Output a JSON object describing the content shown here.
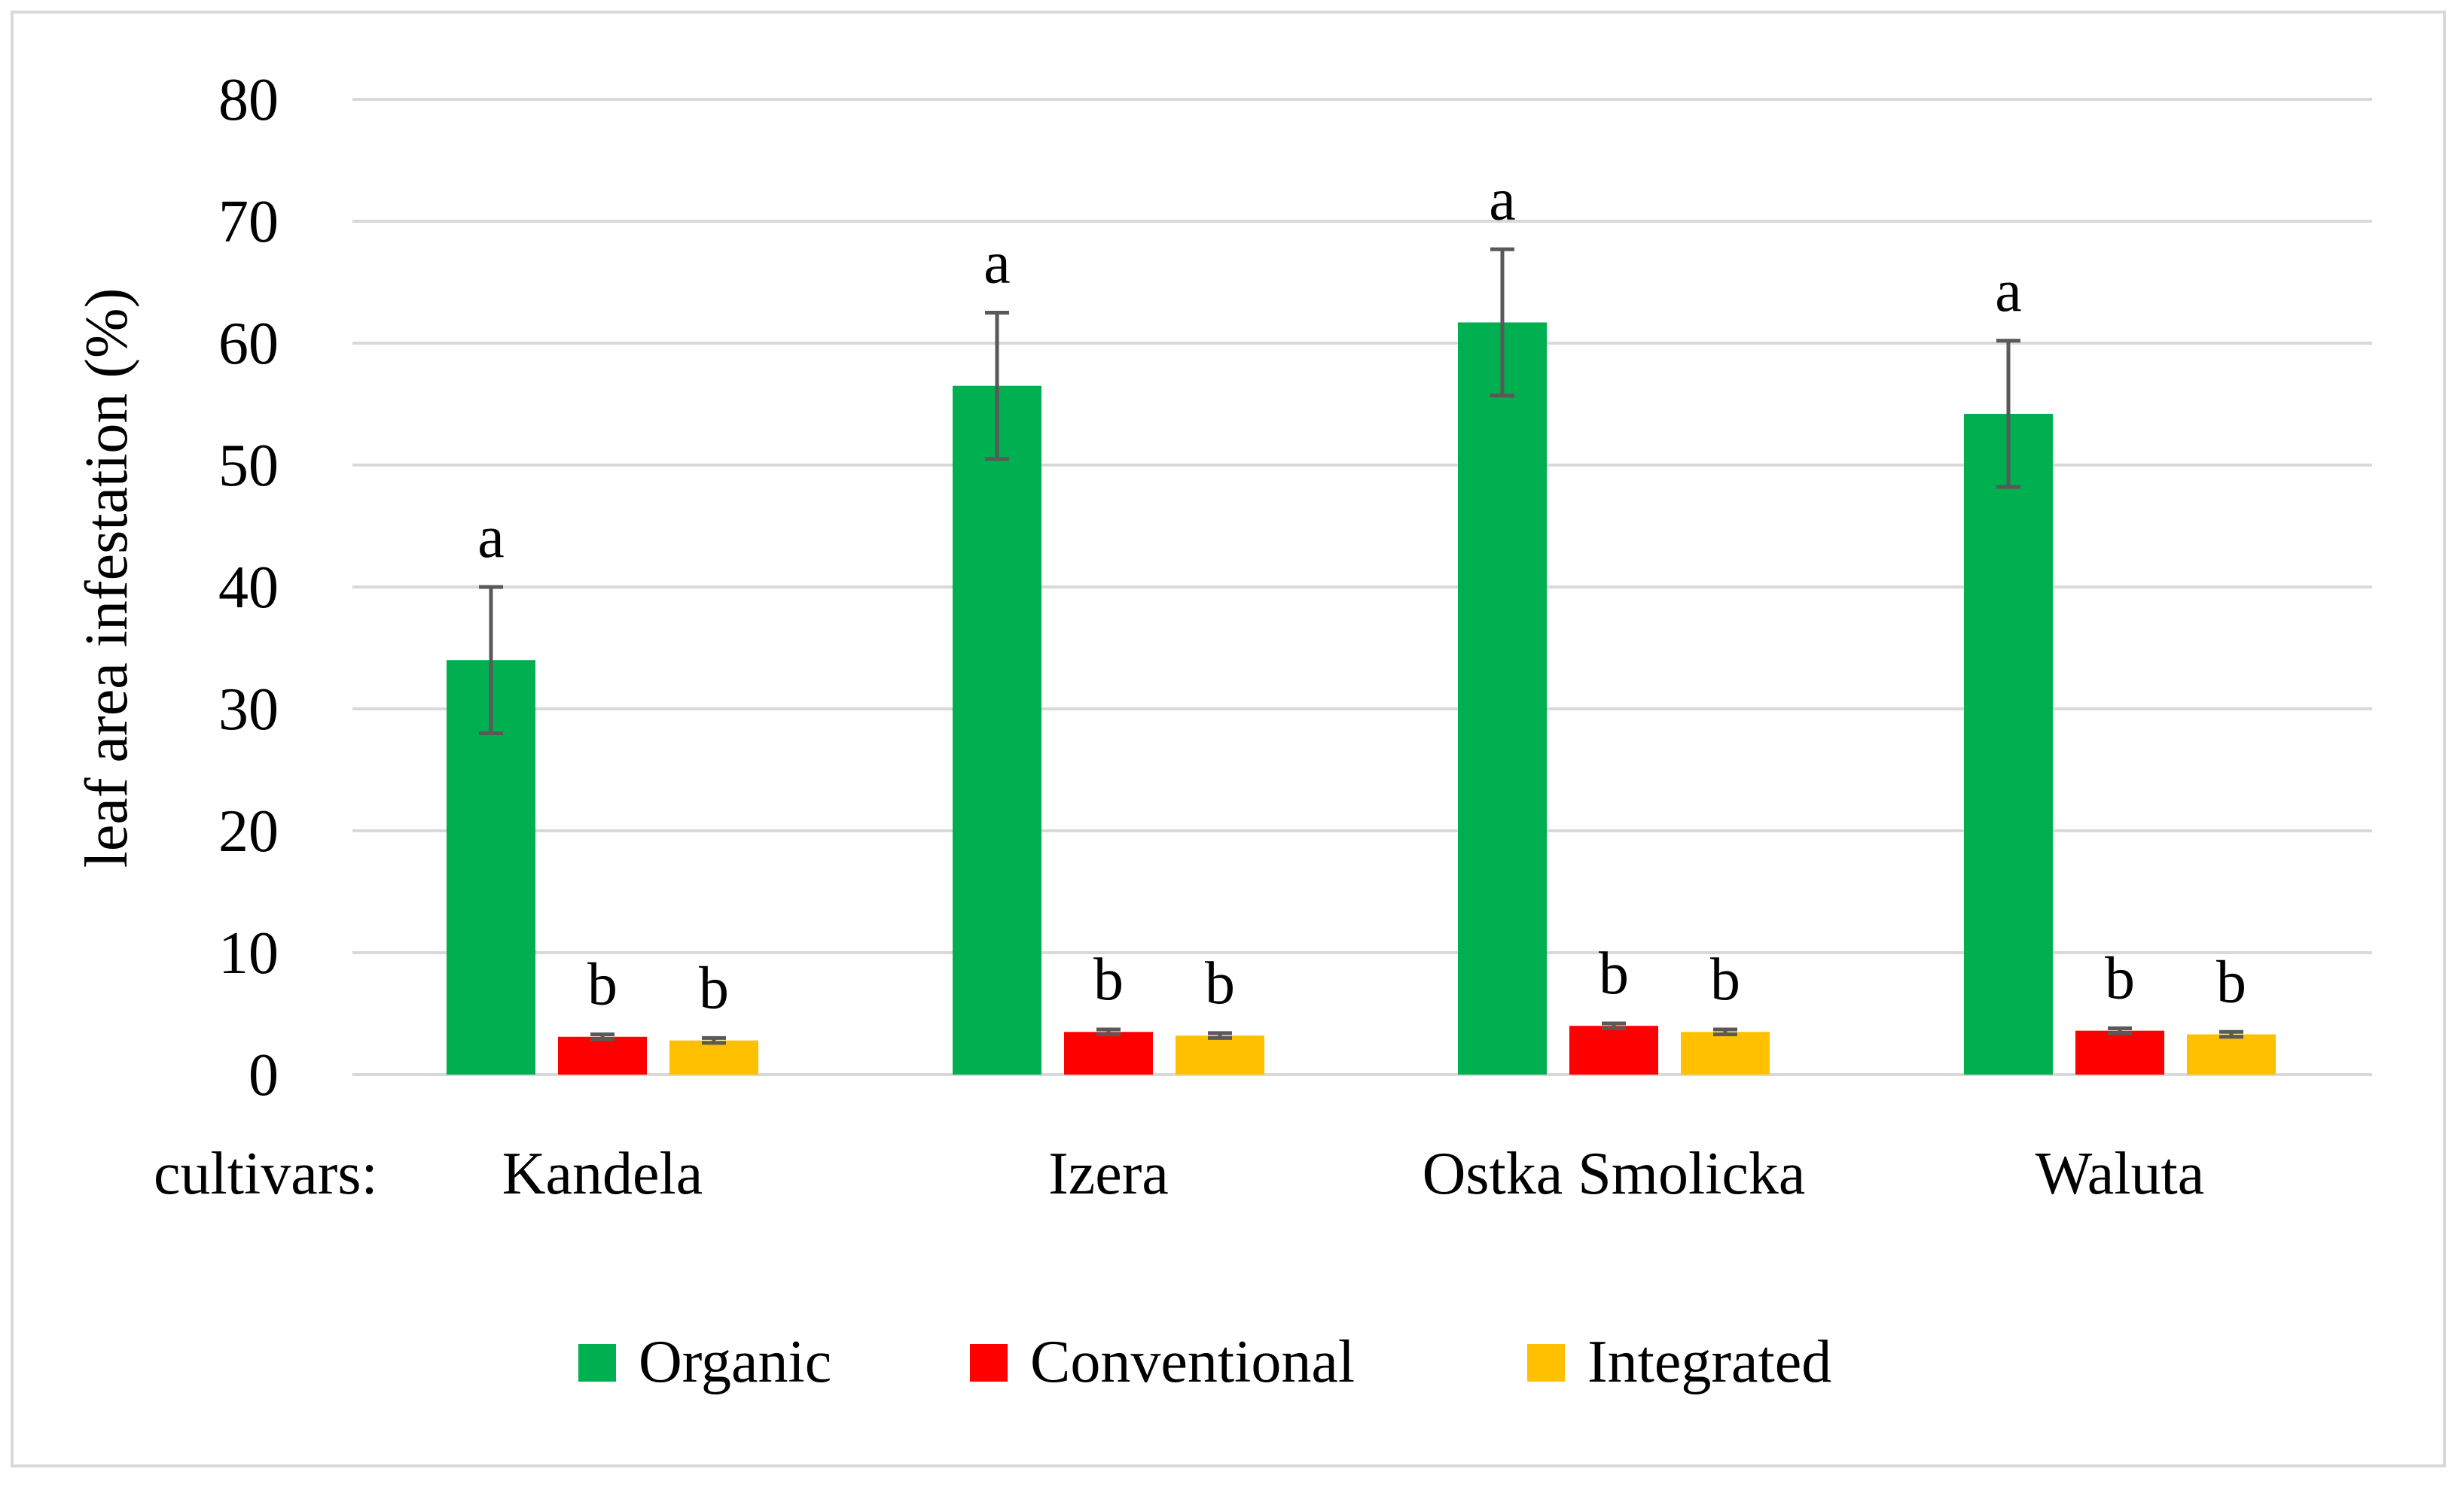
{
  "chart_data": {
    "type": "bar",
    "title": "",
    "xlabel_prefix": "cultivars:",
    "ylabel": "leaf area infestation (%)",
    "ylim": [
      0,
      80
    ],
    "yticks": [
      "0",
      "10",
      "20",
      "30",
      "40",
      "50",
      "60",
      "70",
      "80"
    ],
    "categories": [
      "Kandela",
      "Izera",
      "Ostka Smolicka",
      "Waluta"
    ],
    "grid": true,
    "legend_position": "bottom",
    "series": [
      {
        "name": "Organic",
        "color": "#00b050",
        "values": [
          34.0,
          56.5,
          61.7,
          54.2
        ],
        "errors": [
          6.0,
          6.0,
          6.0,
          6.0
        ],
        "letters": [
          "a",
          "a",
          "a",
          "a"
        ]
      },
      {
        "name": "Conventional",
        "color": "#ff0000",
        "values": [
          3.1,
          3.5,
          4.0,
          3.6
        ],
        "errors": [
          0.2,
          0.2,
          0.2,
          0.2
        ],
        "letters": [
          "b",
          "b",
          "b",
          "b"
        ]
      },
      {
        "name": "Integrated",
        "color": "#ffc000",
        "values": [
          2.8,
          3.2,
          3.5,
          3.3
        ],
        "errors": [
          0.2,
          0.2,
          0.2,
          0.2
        ],
        "letters": [
          "b",
          "b",
          "b",
          "b"
        ]
      }
    ]
  }
}
